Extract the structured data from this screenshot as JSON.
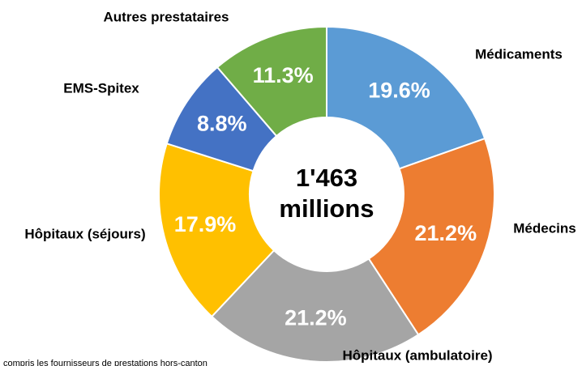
{
  "chart_data": {
    "type": "donut",
    "center_text": [
      "1'463",
      "millions"
    ],
    "categories": [
      "Médicaments",
      "Médecins",
      "Hôpitaux (ambulatoire)",
      "Hôpitaux (séjours)",
      "EMS-Spitex",
      "Autres prestataires"
    ],
    "values": [
      19.6,
      21.2,
      21.2,
      17.9,
      8.8,
      11.3
    ],
    "value_labels": [
      "19.6%",
      "21.2%",
      "21.2%",
      "17.9%",
      "8.8%",
      "11.3%"
    ],
    "colors": [
      "#5b9bd5",
      "#ed7d31",
      "#a5a5a5",
      "#ffc000",
      "#4472c4",
      "#70ad47"
    ],
    "footnote": "compris les fournisseurs de prestations hors-canton"
  }
}
